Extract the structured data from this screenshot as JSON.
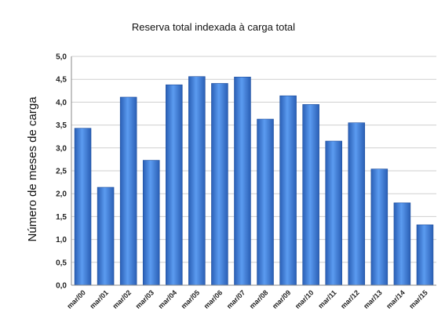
{
  "chart_data": {
    "type": "bar",
    "title": "Reserva total indexada à carga total",
    "xlabel": "",
    "ylabel": "Número de meses de carga",
    "categories": [
      "mar/00",
      "mar/01",
      "mar/02",
      "mar/03",
      "mar/04",
      "mar/05",
      "mar/06",
      "mar/07",
      "mar/08",
      "mar/09",
      "mar/10",
      "mar/11",
      "mar/12",
      "mar/13",
      "mar/14",
      "mar/15"
    ],
    "values": [
      3.43,
      2.14,
      4.11,
      2.73,
      4.38,
      4.56,
      4.41,
      4.55,
      3.63,
      4.14,
      3.95,
      3.15,
      3.55,
      2.54,
      1.8,
      1.32
    ],
    "ylim": [
      0,
      5
    ],
    "yticks": [
      "0,0",
      "0,5",
      "1,0",
      "1,5",
      "2,0",
      "2,5",
      "3,0",
      "3,5",
      "4,0",
      "4,5",
      "5,0"
    ],
    "grid": true,
    "legend": "none",
    "colors": {
      "bar": "#3f7fd6",
      "bar_dark": "#1f4f9e",
      "grid": "#cfcfcf",
      "axis": "#8a8a8a"
    }
  }
}
